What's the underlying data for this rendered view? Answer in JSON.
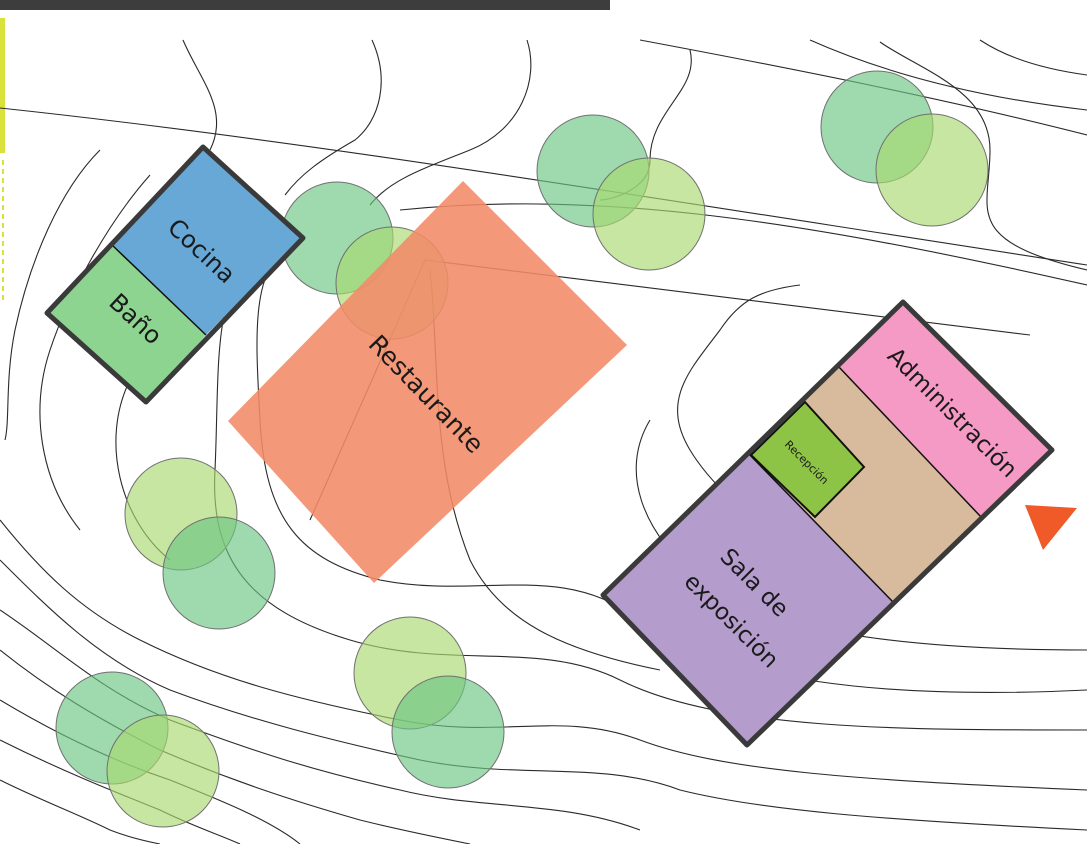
{
  "site_plan": {
    "colors": {
      "header_bar": "#3d3d3d",
      "margin_guide": "#d8e23a",
      "contour_line": "#2a2a2a",
      "tree_dark": "#6cc483",
      "tree_light": "#a8d86e",
      "kitchen": "#68a8d6",
      "bathroom": "#8dd490",
      "restaurant": "#f28a68",
      "administration": "#f59ac4",
      "lobby": "#d8bb9c",
      "reception": "#8ec446",
      "exhibition": "#b49ccd",
      "entrance_marker": "#f05a28"
    },
    "zones": {
      "kitchen": "Cocina",
      "bathroom": "Baño",
      "restaurant": "Restaurante",
      "administration": "Administración",
      "reception": "Recepción",
      "exhibition_line1": "Sala de",
      "exhibition_line2": "exposición"
    },
    "entrance_icon": "triangle-arrow-icon"
  }
}
